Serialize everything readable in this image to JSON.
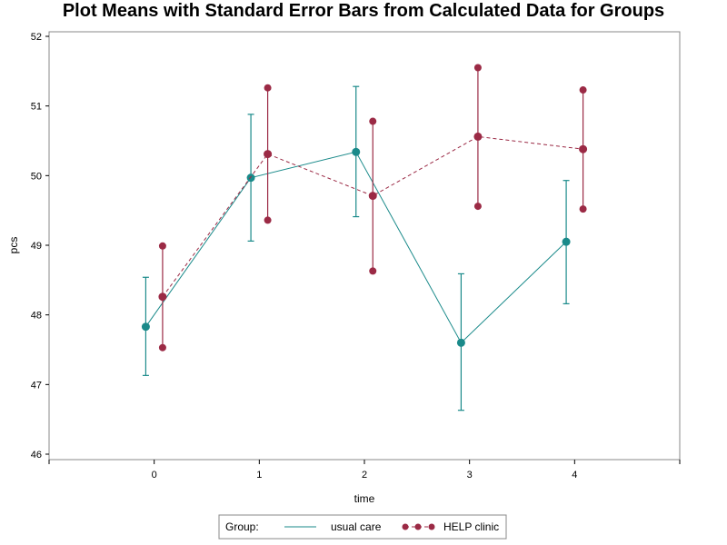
{
  "chart_data": {
    "type": "line",
    "title": "Plot Means with Standard Error Bars from Calculated Data for Groups",
    "xlabel": "time",
    "ylabel": "pcs",
    "x_ticks": [
      0,
      1,
      2,
      3,
      4
    ],
    "xlim": [
      -1,
      5
    ],
    "y_ticks": [
      46,
      47,
      48,
      49,
      50,
      51,
      52
    ],
    "ylim": [
      46,
      52
    ],
    "grid": false,
    "legend": {
      "title": "Group:",
      "placement": "bottom-center"
    },
    "series": [
      {
        "name": "usual care",
        "color": "#1a8a8a",
        "line_style": "solid",
        "points": [
          {
            "x": 0,
            "mean": 47.83,
            "lower": 47.13,
            "upper": 48.54
          },
          {
            "x": 1,
            "mean": 49.97,
            "lower": 49.06,
            "upper": 50.88
          },
          {
            "x": 2,
            "mean": 50.34,
            "lower": 49.41,
            "upper": 51.28
          },
          {
            "x": 3,
            "mean": 47.6,
            "lower": 46.63,
            "upper": 48.59
          },
          {
            "x": 4,
            "mean": 49.05,
            "lower": 48.16,
            "upper": 49.93
          }
        ]
      },
      {
        "name": "HELP clinic",
        "color": "#9b2a45",
        "line_style": "dashed",
        "points": [
          {
            "x": 0,
            "mean": 48.26,
            "lower": 47.53,
            "upper": 48.99
          },
          {
            "x": 1,
            "mean": 50.31,
            "lower": 49.36,
            "upper": 51.26
          },
          {
            "x": 2,
            "mean": 49.71,
            "lower": 48.63,
            "upper": 50.78
          },
          {
            "x": 3,
            "mean": 50.56,
            "lower": 49.56,
            "upper": 51.55
          },
          {
            "x": 4,
            "mean": 50.38,
            "lower": 49.52,
            "upper": 51.23
          }
        ]
      }
    ]
  }
}
